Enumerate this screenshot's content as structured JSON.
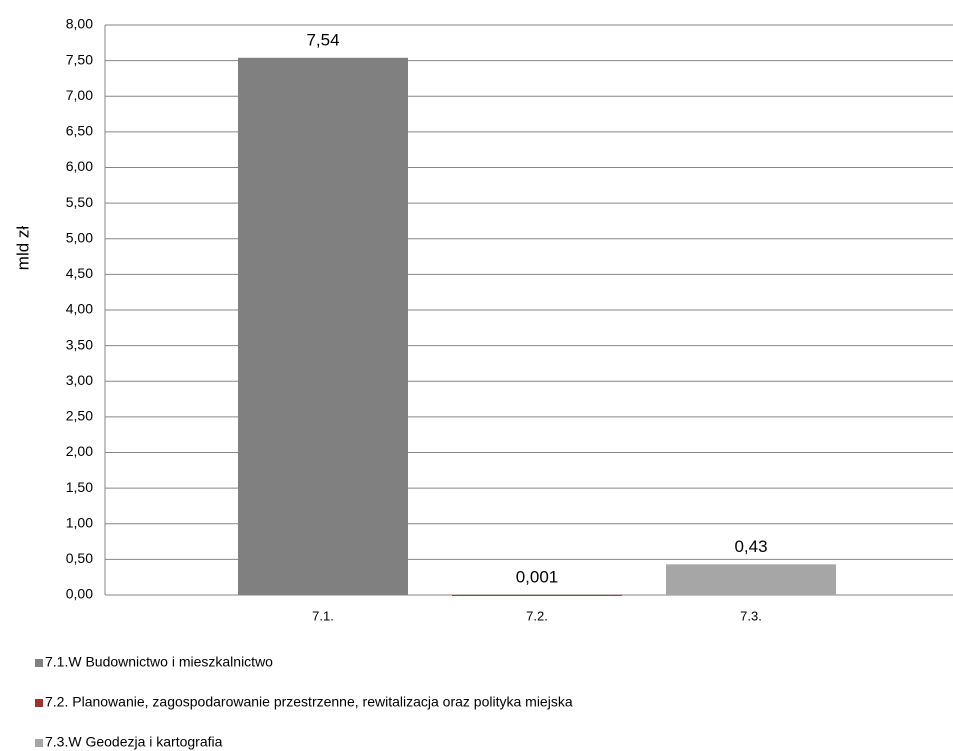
{
  "chart_data": {
    "type": "bar",
    "ylabel": "mld zł",
    "categories": [
      "7.1.",
      "7.2.",
      "7.3."
    ],
    "series": [
      {
        "name": "7.1.W Budownictwo i mieszkalnictwo",
        "color": "#808080",
        "values": [
          7.54,
          null,
          null
        ],
        "value_labels": [
          "7,54",
          null,
          null
        ]
      },
      {
        "name": "7.2. Planowanie, zagospodarowanie przestrzenne, rewitalizacja oraz polityka miejska",
        "color": "#a0322d",
        "values": [
          null,
          0.001,
          null
        ],
        "value_labels": [
          null,
          "0,001",
          null
        ]
      },
      {
        "name": "7.3.W Geodezja i kartografia",
        "color": "#a6a6a6",
        "values": [
          null,
          null,
          0.43
        ],
        "value_labels": [
          null,
          null,
          "0,43"
        ]
      }
    ],
    "ylim": [
      0,
      8
    ],
    "yticks": [
      {
        "value": 0,
        "label": "0,00"
      },
      {
        "value": 0.5,
        "label": "0,50"
      },
      {
        "value": 1,
        "label": "1,00"
      },
      {
        "value": 1.5,
        "label": "1,50"
      },
      {
        "value": 2,
        "label": "2,00"
      },
      {
        "value": 2.5,
        "label": "2,50"
      },
      {
        "value": 3,
        "label": "3,00"
      },
      {
        "value": 3.5,
        "label": "3,50"
      },
      {
        "value": 4,
        "label": "4,00"
      },
      {
        "value": 4.5,
        "label": "4,50"
      },
      {
        "value": 5,
        "label": "5,00"
      },
      {
        "value": 5.5,
        "label": "5,50"
      },
      {
        "value": 6,
        "label": "6,00"
      },
      {
        "value": 6.5,
        "label": "6,50"
      },
      {
        "value": 7,
        "label": "7,00"
      },
      {
        "value": 7.5,
        "label": "7,50"
      },
      {
        "value": 8,
        "label": "8,00"
      }
    ],
    "grid": true
  }
}
